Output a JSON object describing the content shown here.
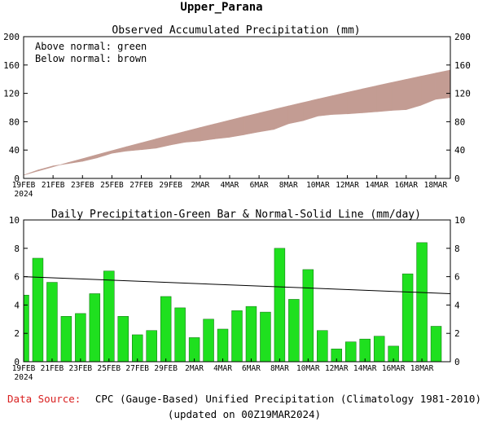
{
  "title": "Upper_Parana",
  "footer": {
    "source_label": "Data Source:",
    "source_text": "CPC (Gauge-Based) Unified Precipitation (Climatology 1981-2010)",
    "updated": "(updated on 00Z19MAR2024)"
  },
  "colors": {
    "band": "#c39c93",
    "bar": "#1fe01f",
    "bar_edge": "#0a6b0a",
    "source_label": "#d92020",
    "normal_line": "#000000"
  },
  "chart_data": [
    {
      "type": "area",
      "title": "Observed Accumulated Precipitation (mm)",
      "legend_lines": [
        "Above normal: green",
        "Below normal: brown"
      ],
      "ylim": [
        0,
        200
      ],
      "yticks": [
        0,
        40,
        80,
        120,
        160,
        200
      ],
      "x_dates": [
        "19FEB",
        "20FEB",
        "21FEB",
        "22FEB",
        "23FEB",
        "24FEB",
        "25FEB",
        "26FEB",
        "27FEB",
        "28FEB",
        "29FEB",
        "1MAR",
        "2MAR",
        "3MAR",
        "4MAR",
        "5MAR",
        "6MAR",
        "7MAR",
        "8MAR",
        "9MAR",
        "10MAR",
        "11MAR",
        "12MAR",
        "13MAR",
        "14MAR",
        "15MAR",
        "16MAR",
        "17MAR",
        "18MAR",
        "19MAR"
      ],
      "xtick_labels": [
        "19FEB",
        "21FEB",
        "23FEB",
        "25FEB",
        "27FEB",
        "29FEB",
        "2MAR",
        "4MAR",
        "6MAR",
        "8MAR",
        "10MAR",
        "12MAR",
        "14MAR",
        "16MAR",
        "18MAR"
      ],
      "first_tick_year": "2024",
      "series": [
        {
          "name": "Normal",
          "values": [
            4.7,
            10.6,
            16.4,
            22.2,
            27.9,
            33.6,
            39.2,
            44.8,
            50.3,
            55.8,
            61.2,
            66.5,
            71.8,
            77.0,
            82.2,
            87.3,
            92.3,
            97.3,
            102.3,
            107.2,
            112.0,
            116.8,
            121.5,
            126.2,
            130.8,
            135.3,
            139.8,
            144.2,
            148.6,
            152.9
          ]
        },
        {
          "name": "Observed",
          "values": [
            4.7,
            12.0,
            17.6,
            20.8,
            24.2,
            29.0,
            35.4,
            38.6,
            40.5,
            42.7,
            47.3,
            51.1,
            52.8,
            55.8,
            58.1,
            61.7,
            65.6,
            69.1,
            77.1,
            81.5,
            88.0,
            90.2,
            91.1,
            92.5,
            94.1,
            95.9,
            97.0,
            103.2,
            111.6,
            114.1
          ]
        }
      ]
    },
    {
      "type": "bar",
      "title": "Daily Precipitation-Green Bar & Normal-Solid Line (mm/day)",
      "ylim": [
        0,
        10
      ],
      "yticks": [
        0,
        2,
        4,
        6,
        8,
        10
      ],
      "x_dates": [
        "19FEB",
        "20FEB",
        "21FEB",
        "22FEB",
        "23FEB",
        "24FEB",
        "25FEB",
        "26FEB",
        "27FEB",
        "28FEB",
        "29FEB",
        "1MAR",
        "2MAR",
        "3MAR",
        "4MAR",
        "5MAR",
        "6MAR",
        "7MAR",
        "8MAR",
        "9MAR",
        "10MAR",
        "11MAR",
        "12MAR",
        "13MAR",
        "14MAR",
        "15MAR",
        "16MAR",
        "17MAR",
        "18MAR",
        "19MAR"
      ],
      "xtick_labels": [
        "19FEB",
        "21FEB",
        "23FEB",
        "25FEB",
        "27FEB",
        "29FEB",
        "2MAR",
        "4MAR",
        "6MAR",
        "8MAR",
        "10MAR",
        "12MAR",
        "14MAR",
        "16MAR",
        "18MAR"
      ],
      "first_tick_year": "2024",
      "series": [
        {
          "name": "Daily precipitation",
          "values": [
            4.7,
            7.3,
            5.6,
            3.2,
            3.4,
            4.8,
            6.4,
            3.2,
            1.9,
            2.2,
            4.6,
            3.8,
            1.7,
            3.0,
            2.3,
            3.6,
            3.9,
            3.5,
            8.0,
            4.4,
            6.5,
            2.2,
            0.9,
            1.4,
            1.6,
            1.8,
            1.1,
            6.2,
            8.4,
            2.5
          ]
        },
        {
          "name": "Normal",
          "values": [
            6.0,
            4.8
          ]
        }
      ]
    }
  ]
}
